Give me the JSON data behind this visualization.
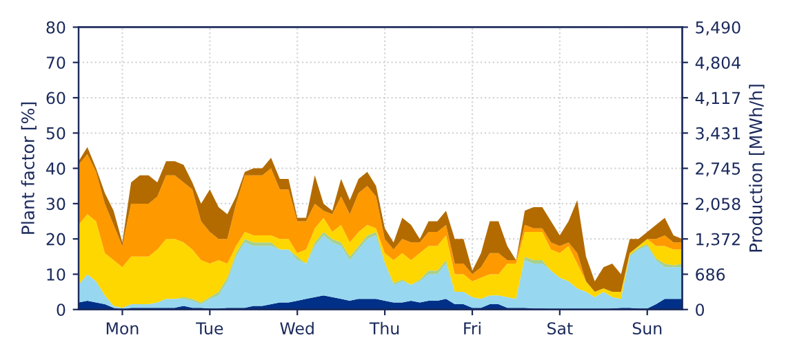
{
  "chart_data": {
    "type": "area",
    "stacked": true,
    "ylabel": "Plant factor [%]",
    "y2label": "Production [MWh/h]",
    "categories": [
      null,
      null,
      null,
      null,
      null,
      "Mon",
      null,
      null,
      null,
      null,
      null,
      null,
      null,
      null,
      null,
      "Tue",
      null,
      null,
      null,
      null,
      null,
      null,
      null,
      null,
      null,
      "Wed",
      null,
      null,
      null,
      null,
      null,
      null,
      null,
      null,
      null,
      "Thu",
      null,
      null,
      null,
      null,
      null,
      null,
      null,
      null,
      null,
      "Fri",
      null,
      null,
      null,
      null,
      null,
      null,
      null,
      null,
      null,
      "Sat",
      null,
      null,
      null,
      null,
      null,
      null,
      null,
      null,
      null,
      "Sun",
      null,
      null,
      null,
      null
    ],
    "series": [
      {
        "color": "#003087",
        "values": [
          2,
          2.5,
          2,
          1.5,
          0.5,
          0,
          0.5,
          0.5,
          0.5,
          0.5,
          0.5,
          0.5,
          1,
          0.5,
          0.5,
          0.3,
          0.3,
          0.5,
          0.5,
          0.5,
          1,
          1,
          1.5,
          2,
          2,
          2.5,
          3,
          3.5,
          4,
          3.5,
          3,
          2.5,
          3,
          3,
          3,
          2.5,
          2,
          2,
          2.5,
          2,
          2.5,
          2.5,
          3,
          1.5,
          1.5,
          0.5,
          0.5,
          1.5,
          1.5,
          0.5,
          0.5,
          0.5,
          0.3,
          0.3,
          0.2,
          0.2,
          0.2,
          0.2,
          0.2,
          0.2,
          0.2,
          0.3,
          0.5,
          0.5,
          0.3,
          0.3,
          1.5,
          3,
          3,
          3
        ]
      },
      {
        "color": "#97d7ef",
        "values": [
          5,
          7.5,
          6,
          2.5,
          0.5,
          0.5,
          1,
          1,
          1,
          1.5,
          2.5,
          2.5,
          2,
          2,
          1,
          2.7,
          3.7,
          7.5,
          14.5,
          18.5,
          17,
          17,
          16.5,
          15,
          15,
          11.5,
          10,
          14.5,
          17,
          15.5,
          15,
          11.5,
          14,
          17,
          18,
          10.5,
          5,
          6,
          4.5,
          6,
          7.5,
          7.5,
          10,
          3.5,
          3.5,
          3,
          2.5,
          2.5,
          2.5,
          3,
          2.5,
          13.5,
          12.7,
          12.7,
          10.8,
          8.8,
          7.8,
          5.8,
          4.8,
          3.3,
          4.8,
          3.2,
          2.5,
          14.5,
          16.7,
          17.7,
          12.5,
          9,
          9,
          9
        ]
      },
      {
        "color": "#a8d08d",
        "values": [
          0,
          0,
          0,
          0,
          0,
          0,
          0,
          0,
          0,
          0,
          0,
          0,
          0.5,
          0.5,
          0.5,
          0.5,
          1,
          1,
          1,
          1,
          1,
          1,
          1,
          0,
          0,
          1,
          0,
          1,
          1,
          1,
          1,
          1,
          1,
          1,
          1,
          0.5,
          0.5,
          0.5,
          0,
          0.5,
          1,
          1,
          1,
          0,
          0,
          0,
          0,
          0,
          0,
          0,
          0,
          1,
          1,
          1,
          0,
          0,
          0,
          0,
          0,
          0,
          0,
          0,
          0,
          0.5,
          0.5,
          0.5,
          0.5,
          1,
          0.5,
          1
        ]
      },
      {
        "color": "#ffd700",
        "values": [
          17,
          17,
          17,
          12,
          13,
          11.5,
          13.5,
          13.5,
          13.5,
          15,
          17,
          17,
          15.5,
          14,
          12,
          9.5,
          9,
          4,
          2,
          2,
          2,
          2,
          2,
          3,
          3,
          1,
          4,
          4,
          4,
          2,
          5,
          4,
          4,
          3,
          1,
          2.5,
          6.5,
          7.5,
          7,
          7.5,
          7,
          7,
          7,
          5,
          5,
          4.5,
          6,
          6,
          6,
          9.5,
          10,
          7,
          8,
          8,
          6,
          7,
          10,
          7,
          3,
          1.5,
          1,
          1.5,
          2,
          0.5,
          0.5,
          1.5,
          3.5,
          5,
          4.5,
          4
        ]
      },
      {
        "color": "#ff9900",
        "values": [
          17,
          17,
          14,
          14,
          10,
          6,
          15,
          15,
          15,
          15,
          18,
          18,
          17,
          17,
          11,
          9,
          6,
          7,
          12,
          16,
          17,
          17,
          19,
          14,
          14,
          9,
          8,
          7,
          2,
          5,
          8,
          8,
          11,
          11,
          9,
          4,
          3,
          4,
          5,
          3,
          4,
          4,
          3,
          3,
          3,
          2,
          3,
          6,
          6,
          1,
          1,
          2,
          1,
          1,
          2,
          2,
          1,
          3,
          0,
          0,
          0,
          0,
          0,
          0,
          0,
          0,
          2,
          3,
          2,
          2
        ]
      },
      {
        "color": "#b36b00",
        "values": [
          1,
          2,
          1,
          3,
          4,
          1,
          6,
          8,
          8,
          4,
          4,
          4,
          5,
          2,
          5,
          12,
          9,
          7,
          2,
          1,
          2,
          2,
          3,
          3,
          3,
          1,
          1,
          8,
          2,
          1,
          5,
          4,
          4,
          4,
          3,
          3,
          2,
          6,
          5,
          1,
          3,
          3,
          4,
          7,
          7,
          1,
          4,
          9,
          9,
          4,
          0,
          4,
          6,
          6,
          6,
          3,
          6,
          15,
          7,
          3,
          6,
          8,
          5,
          4,
          2,
          2,
          4,
          5,
          2,
          1
        ]
      }
    ],
    "ylim": [
      0,
      80
    ],
    "yticks": [
      0,
      10,
      20,
      30,
      40,
      50,
      60,
      70,
      80
    ],
    "y2lim": [
      0,
      5490
    ],
    "y2ticks": [
      {
        "value": 0,
        "label": "0"
      },
      {
        "value": 686,
        "label": "686"
      },
      {
        "value": 1372,
        "label": "1,372"
      },
      {
        "value": 2058,
        "label": "2,058"
      },
      {
        "value": 2745,
        "label": "2,745"
      },
      {
        "value": 3431,
        "label": "3,431"
      },
      {
        "value": 4117,
        "label": "4,117"
      },
      {
        "value": 4804,
        "label": "4,804"
      },
      {
        "value": 5490,
        "label": "5,490"
      }
    ],
    "grid": true
  }
}
